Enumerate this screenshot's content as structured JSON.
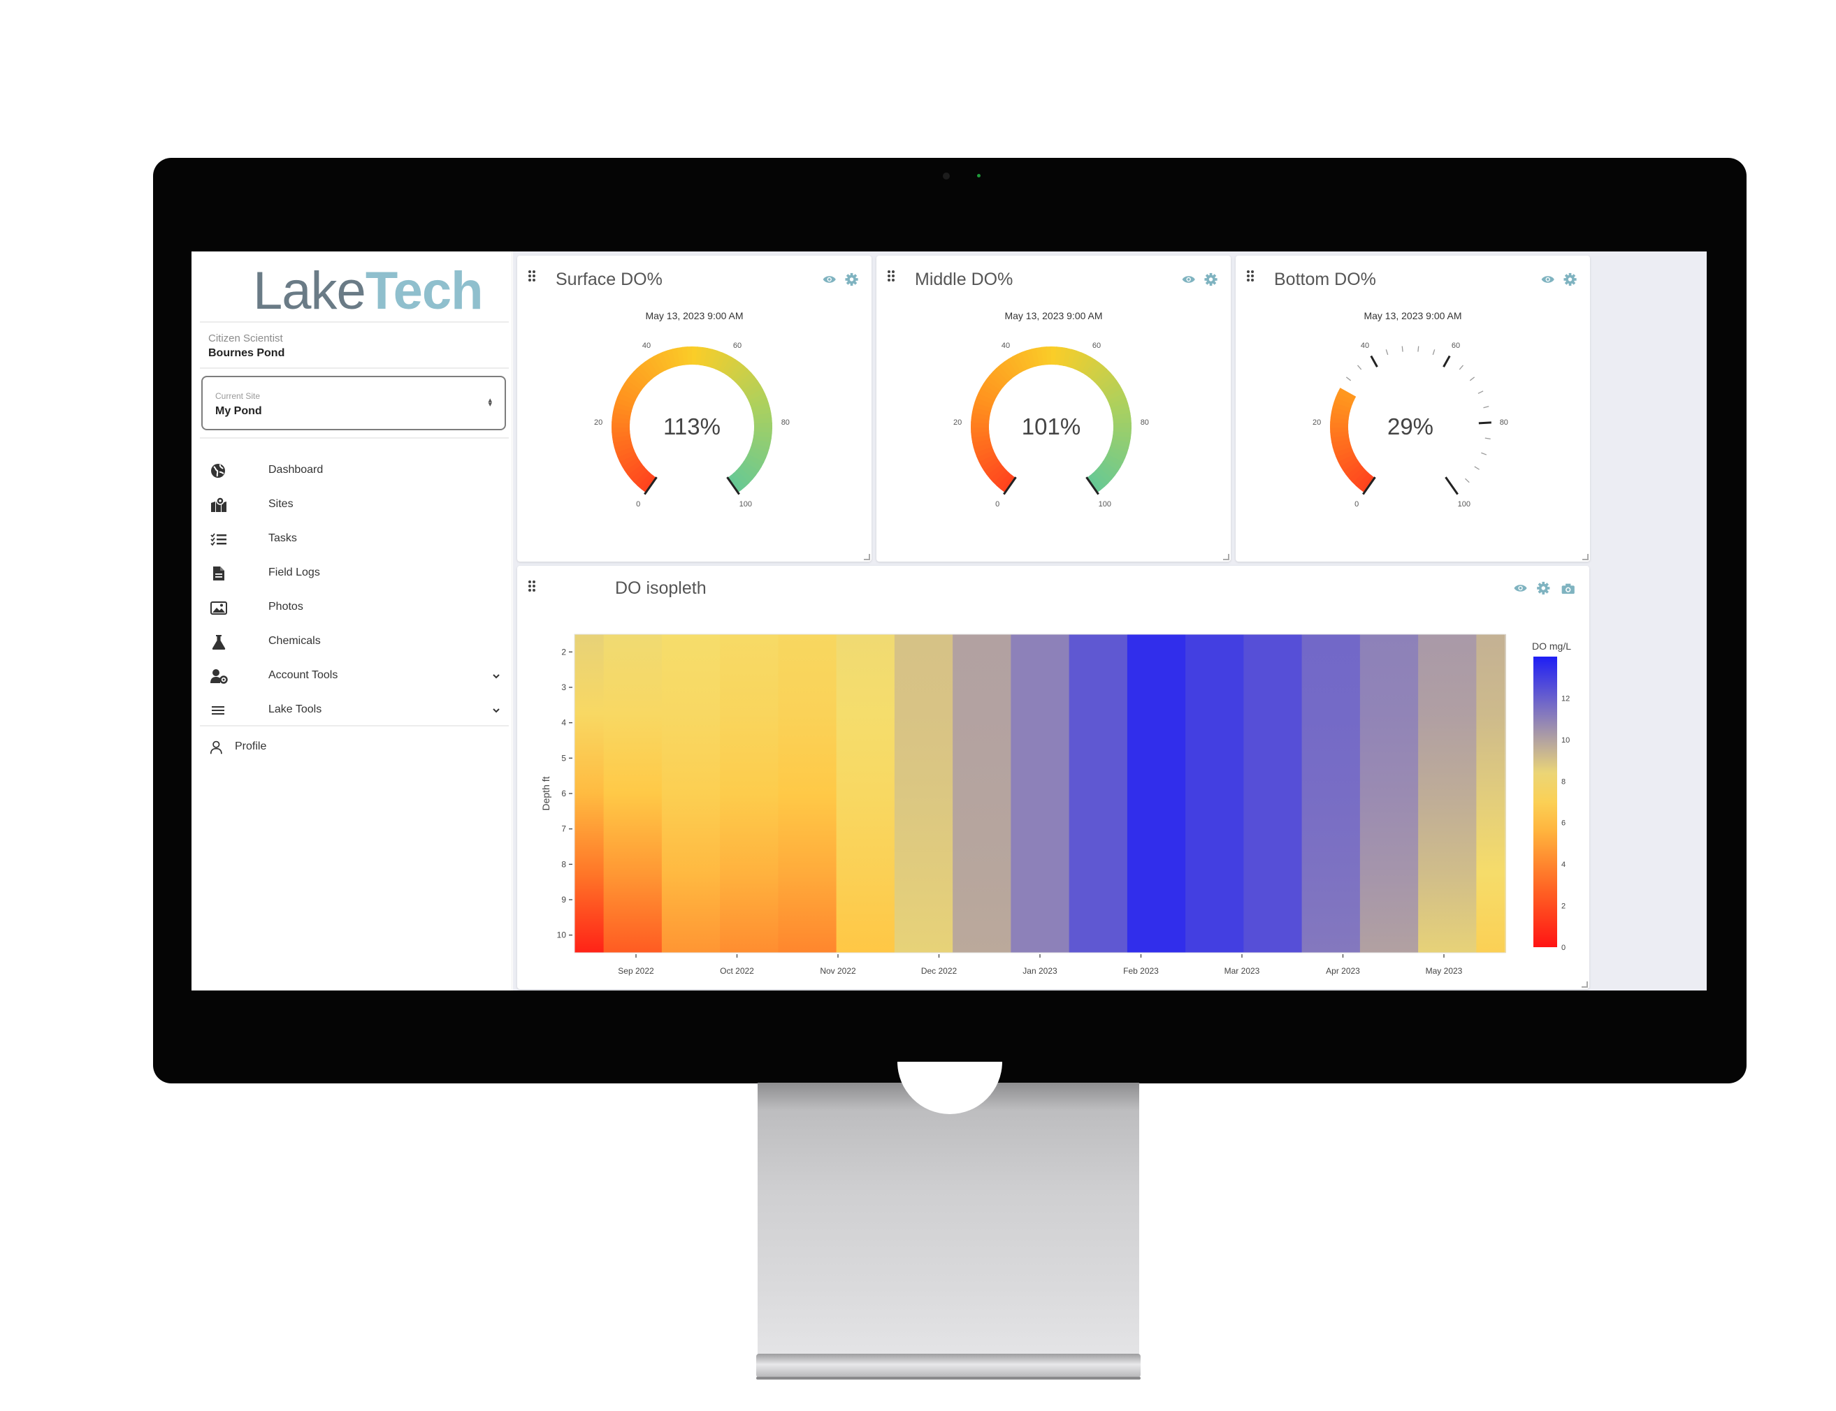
{
  "sidebar": {
    "logo": {
      "part1": "Lake",
      "part2": "Tech"
    },
    "user": {
      "role": "Citizen Scientist",
      "organization": "Bournes Pond"
    },
    "site_select": {
      "label": "Current Site",
      "value": "My Pond"
    },
    "nav": [
      {
        "label": "Dashboard",
        "icon": "globe-icon"
      },
      {
        "label": "Sites",
        "icon": "map-pin-icon"
      },
      {
        "label": "Tasks",
        "icon": "task-list-icon"
      },
      {
        "label": "Field Logs",
        "icon": "document-icon"
      },
      {
        "label": "Photos",
        "icon": "image-icon"
      },
      {
        "label": "Chemicals",
        "icon": "flask-icon"
      },
      {
        "label": "Account Tools",
        "icon": "user-cog-icon",
        "expandable": true
      },
      {
        "label": "Lake Tools",
        "icon": "menu-lines-icon",
        "expandable": true
      }
    ],
    "profile": {
      "label": "Profile",
      "icon": "person-icon"
    }
  },
  "gauges": [
    {
      "title": "Surface DO%",
      "timestamp": "May 13, 2023 9:00 AM",
      "value": 113,
      "display": "113%",
      "ticks": [
        "0",
        "20",
        "40",
        "60",
        "80",
        "100"
      ],
      "min": 0,
      "max": 100
    },
    {
      "title": "Middle DO%",
      "timestamp": "May 13, 2023 9:00 AM",
      "value": 101,
      "display": "101%",
      "ticks": [
        "0",
        "20",
        "40",
        "60",
        "80",
        "100"
      ],
      "min": 0,
      "max": 100
    },
    {
      "title": "Bottom DO%",
      "timestamp": "May 13, 2023 9:00 AM",
      "value": 29,
      "display": "29%",
      "ticks": [
        "0",
        "20",
        "40",
        "60",
        "80",
        "100"
      ],
      "min": 0,
      "max": 100
    }
  ],
  "isopleth": {
    "title": "DO isopleth",
    "actions": [
      "eye-icon",
      "gear-icon",
      "camera-icon"
    ]
  },
  "chart_data": {
    "type": "heatmap",
    "title": "DO isopleth",
    "xlabel": "",
    "ylabel": "Depth ft",
    "x_ticks": [
      "Sep 2022",
      "Oct 2022",
      "Nov 2022",
      "Dec 2022",
      "Jan 2023",
      "Feb 2023",
      "Mar 2023",
      "Apr 2023",
      "May 2023"
    ],
    "y_ticks": [
      "2",
      "3",
      "4",
      "5",
      "6",
      "7",
      "8",
      "9",
      "10"
    ],
    "ylim": [
      1.5,
      10.5
    ],
    "y_reversed": true,
    "colorbar": {
      "title": "DO mg/L",
      "ticks": [
        "0",
        "2",
        "4",
        "6",
        "8",
        "10",
        "12"
      ],
      "range": [
        0,
        14
      ],
      "colors": [
        "#ff1a1a",
        "#ffd24d",
        "#2020f5"
      ]
    },
    "profiles": [
      {
        "date": "Sep 2022",
        "surface": 8.5,
        "bottom": 0.5
      },
      {
        "date": "Oct 2022",
        "surface": 8.0,
        "bottom": 4.5
      },
      {
        "date": "Nov 2022",
        "surface": 7.5,
        "bottom": 4.0
      },
      {
        "date": "Dec 2022",
        "surface": 9.0,
        "bottom": 8.5
      },
      {
        "date": "Jan 2023",
        "surface": 11.0,
        "bottom": 11.0
      },
      {
        "date": "Feb 2023",
        "surface": 13.5,
        "bottom": 13.5
      },
      {
        "date": "Mar 2023",
        "surface": 12.5,
        "bottom": 12.5
      },
      {
        "date": "Apr 2023",
        "surface": 11.0,
        "bottom": 10.0
      },
      {
        "date": "May 2023",
        "surface": 9.5,
        "bottom": 7.0
      }
    ]
  },
  "colors": {
    "accent": "#8fbfcd",
    "logo_gray": "#6a7b86",
    "icon_teal": "#7fb3c0",
    "background": "#ecedf3"
  }
}
